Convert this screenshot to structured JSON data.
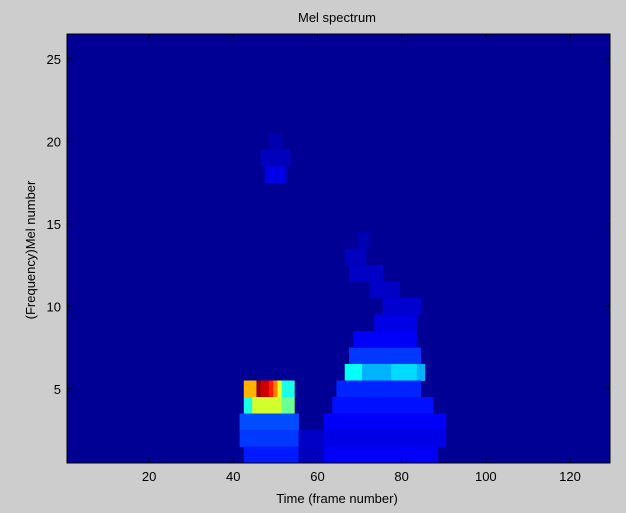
{
  "chart_data": {
    "type": "heatmap",
    "title": "Mel spectrum",
    "xlabel": "Time (frame number)",
    "ylabel": "(Frequency)Mel number",
    "xlim": [
      0.5,
      129.5
    ],
    "ylim": [
      0.5,
      26.5
    ],
    "xticks": [
      20,
      40,
      60,
      80,
      100,
      120
    ],
    "yticks": [
      5,
      10,
      15,
      20,
      25
    ],
    "colormap": "jet",
    "value_range": [
      0,
      1
    ],
    "background_value": 0.02,
    "cells": [
      {
        "x": [
          43,
          45
        ],
        "y": 5,
        "v": 0.7
      },
      {
        "x": [
          46,
          46
        ],
        "y": 5,
        "v": 0.98
      },
      {
        "x": [
          47,
          48
        ],
        "y": 5,
        "v": 0.92
      },
      {
        "x": [
          49,
          49
        ],
        "y": 5,
        "v": 0.85
      },
      {
        "x": [
          50,
          50
        ],
        "y": 5,
        "v": 0.75
      },
      {
        "x": [
          51,
          51
        ],
        "y": 5,
        "v": 0.6
      },
      {
        "x": [
          52,
          54
        ],
        "y": 5,
        "v": 0.4
      },
      {
        "x": [
          43,
          44
        ],
        "y": 4,
        "v": 0.4
      },
      {
        "x": [
          45,
          51
        ],
        "y": 4,
        "v": 0.58
      },
      {
        "x": [
          52,
          54
        ],
        "y": 4,
        "v": 0.48
      },
      {
        "x": [
          42,
          55
        ],
        "y": 3,
        "v": 0.2
      },
      {
        "x": [
          42,
          56
        ],
        "y": 2,
        "v": 0.18
      },
      {
        "x": [
          43,
          56
        ],
        "y": 1,
        "v": 0.15
      },
      {
        "x": [
          56,
          62
        ],
        "y": 1,
        "v": 0.06
      },
      {
        "x": [
          56,
          62
        ],
        "y": 2,
        "v": 0.07
      },
      {
        "x": [
          68,
          84
        ],
        "y": 7,
        "v": 0.18
      },
      {
        "x": [
          67,
          85
        ],
        "y": 6,
        "v": 0.3
      },
      {
        "x": [
          67,
          70
        ],
        "y": 6,
        "v": 0.38
      },
      {
        "x": [
          78,
          83
        ],
        "y": 6,
        "v": 0.34
      },
      {
        "x": [
          65,
          84
        ],
        "y": 5,
        "v": 0.16
      },
      {
        "x": [
          64,
          87
        ],
        "y": 4,
        "v": 0.14
      },
      {
        "x": [
          62,
          90
        ],
        "y": 3,
        "v": 0.12
      },
      {
        "x": [
          62,
          90
        ],
        "y": 2,
        "v": 0.1
      },
      {
        "x": [
          62,
          88
        ],
        "y": 1,
        "v": 0.12
      },
      {
        "x": [
          69,
          83
        ],
        "y": 8,
        "v": 0.12
      },
      {
        "x": [
          74,
          83
        ],
        "y": 9,
        "v": 0.1
      },
      {
        "x": [
          76,
          84
        ],
        "y": 10,
        "v": 0.08
      },
      {
        "x": [
          73,
          79
        ],
        "y": 11,
        "v": 0.07
      },
      {
        "x": [
          68,
          75
        ],
        "y": 12,
        "v": 0.07
      },
      {
        "x": [
          67,
          71
        ],
        "y": 13,
        "v": 0.06
      },
      {
        "x": [
          70,
          72
        ],
        "y": 14,
        "v": 0.05
      },
      {
        "x": [
          48,
          52
        ],
        "y": 18,
        "v": 0.1
      },
      {
        "x": [
          47,
          53
        ],
        "y": 19,
        "v": 0.06
      },
      {
        "x": [
          49,
          51
        ],
        "y": 20,
        "v": 0.05
      }
    ]
  }
}
